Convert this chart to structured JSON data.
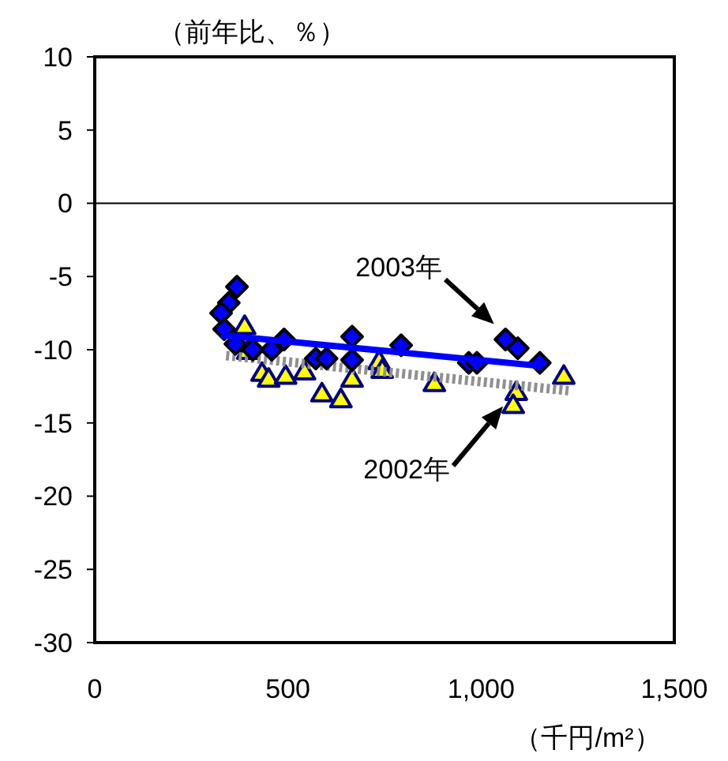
{
  "chart_data": {
    "type": "scatter",
    "ylabel": "（前年比、％）",
    "xlabel": "（千円/m²）",
    "xlim": [
      0,
      1500
    ],
    "xticks": [
      0,
      500,
      {
        "value": 1000,
        "label": "1,000"
      },
      {
        "value": 1500,
        "label": "1,500"
      }
    ],
    "ylim": [
      -30,
      10
    ],
    "yticks": [
      -30,
      -25,
      -20,
      -15,
      -10,
      -5,
      0,
      5,
      10
    ],
    "grid": false,
    "ref_lines": [
      {
        "axis": "y",
        "value": 0,
        "color": "#000000"
      }
    ],
    "series": [
      {
        "marker": "triangle",
        "color": "#ffff00",
        "x": [
          388,
          396,
          433,
          450,
          494,
          543,
          588,
          637,
          666,
          736,
          744,
          879,
          1091,
          1083,
          1214
        ],
        "values": [
          -8.4,
          -10.1,
          -11.6,
          -12.0,
          -11.8,
          -11.5,
          -13.0,
          -13.4,
          -12.0,
          -10.8,
          -11.4,
          -12.3,
          -12.9,
          -13.8,
          -11.8
        ]
      },
      {
        "type": "line",
        "marker": "none",
        "line_style": "dotted",
        "color": "#909090",
        "x": [
          340,
          1226
        ],
        "values": [
          -10.4,
          -12.8
        ]
      },
      {
        "marker": "diamond",
        "color": "#0000ff",
        "x": [
          368,
          347,
          327,
          335,
          364,
          409,
          458,
          490,
          572,
          600,
          666,
          666,
          793,
          968,
          989,
          1063,
          1095,
          1152
        ],
        "values": [
          -5.7,
          -6.8,
          -7.5,
          -8.6,
          -9.6,
          -10.0,
          -10.0,
          -9.3,
          -10.6,
          -10.6,
          -9.1,
          -10.7,
          -9.7,
          -10.9,
          -10.9,
          -9.3,
          -9.9,
          -10.9
        ]
      },
      {
        "type": "line",
        "marker": "none",
        "line_style": "solid",
        "color": "#0000ff",
        "x": [
          327,
          1152
        ],
        "values": [
          -9.0,
          -11.1
        ]
      }
    ],
    "annotations": [
      "2003年",
      "2002年"
    ]
  }
}
